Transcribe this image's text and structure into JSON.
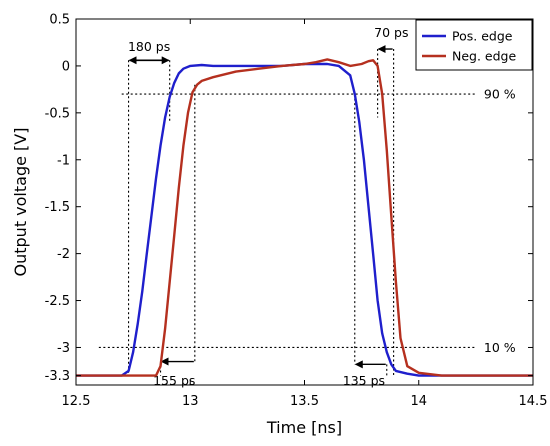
{
  "chart_data": {
    "type": "line",
    "xlabel": "Time [ns]",
    "ylabel": "Output voltage [V]",
    "xlim": [
      12.5,
      14.5
    ],
    "ylim": [
      -3.4,
      0.5
    ],
    "xticks": [
      12.5,
      13,
      13.5,
      14,
      14.5
    ],
    "xtick_labels": [
      "12.5",
      "13",
      "13.5",
      "14",
      "14.5"
    ],
    "yticks": [
      0.5,
      0,
      -0.5,
      -1,
      -1.5,
      -2,
      -2.5,
      -3,
      -3.3
    ],
    "ytick_labels": [
      "0.5",
      "0",
      "-0.5",
      "-1",
      "-1.5",
      "-2",
      "-2.5",
      "-3",
      "-3.3"
    ],
    "grid": false,
    "legend_position": "top-right",
    "series": [
      {
        "name": "Pos. edge",
        "color": "#1f1fcc",
        "x": [
          12.5,
          12.6,
          12.65,
          12.7,
          12.73,
          12.75,
          12.77,
          12.79,
          12.81,
          12.83,
          12.85,
          12.87,
          12.89,
          12.91,
          12.93,
          12.95,
          12.97,
          13.0,
          13.05,
          13.1,
          13.2,
          13.3,
          13.4,
          13.5,
          13.6,
          13.65,
          13.7,
          13.72,
          13.74,
          13.76,
          13.78,
          13.8,
          13.82,
          13.84,
          13.86,
          13.88,
          13.9,
          13.95,
          14.0,
          14.1,
          14.2,
          14.3,
          14.5
        ],
        "y": [
          -3.3,
          -3.3,
          -3.3,
          -3.3,
          -3.25,
          -3.05,
          -2.75,
          -2.4,
          -2.0,
          -1.6,
          -1.2,
          -0.85,
          -0.55,
          -0.33,
          -0.18,
          -0.08,
          -0.03,
          0.0,
          0.01,
          0.0,
          0.0,
          0.0,
          0.0,
          0.02,
          0.02,
          0.0,
          -0.1,
          -0.3,
          -0.6,
          -1.0,
          -1.5,
          -2.0,
          -2.5,
          -2.85,
          -3.05,
          -3.18,
          -3.25,
          -3.28,
          -3.3,
          -3.3,
          -3.3,
          -3.3,
          -3.3
        ]
      },
      {
        "name": "Neg. edge",
        "color": "#b5301f",
        "x": [
          12.5,
          12.6,
          12.7,
          12.8,
          12.85,
          12.87,
          12.89,
          12.91,
          12.93,
          12.95,
          12.97,
          12.99,
          13.01,
          13.03,
          13.05,
          13.1,
          13.2,
          13.3,
          13.4,
          13.5,
          13.55,
          13.6,
          13.65,
          13.7,
          13.75,
          13.78,
          13.8,
          13.82,
          13.84,
          13.86,
          13.88,
          13.9,
          13.92,
          13.95,
          14.0,
          14.1,
          14.2,
          14.3,
          14.5
        ],
        "y": [
          -3.3,
          -3.3,
          -3.3,
          -3.3,
          -3.3,
          -3.2,
          -2.8,
          -2.3,
          -1.8,
          -1.3,
          -0.85,
          -0.5,
          -0.28,
          -0.2,
          -0.16,
          -0.12,
          -0.06,
          -0.03,
          0.0,
          0.02,
          0.04,
          0.07,
          0.04,
          0.0,
          0.02,
          0.05,
          0.06,
          0.0,
          -0.3,
          -0.9,
          -1.6,
          -2.3,
          -2.9,
          -3.2,
          -3.27,
          -3.3,
          -3.3,
          -3.3,
          -3.3
        ]
      }
    ],
    "reference_lines": [
      {
        "label": "90 %",
        "y": -0.3,
        "x_start": 12.7,
        "x_end": 14.25
      },
      {
        "label": "10 %",
        "y": -3.0,
        "x_start": 12.6,
        "x_end": 14.25
      }
    ],
    "annotations": [
      {
        "text": "180 ps",
        "arrow": "double",
        "x1": 12.73,
        "x2": 12.91,
        "y": 0.06,
        "label_x": 12.82,
        "label_y": 0.2,
        "vlines": [
          {
            "x": 12.73,
            "y_from": 0.06,
            "y_to": -3.3
          },
          {
            "x": 12.91,
            "y_from": 0.06,
            "y_to": -0.6
          }
        ]
      },
      {
        "text": "70 ps",
        "arrow": "inward",
        "x1": 13.82,
        "x2": 13.89,
        "y": 0.18,
        "label_x": 13.88,
        "label_y": 0.35,
        "vlines": [
          {
            "x": 13.82,
            "y_from": 0.18,
            "y_to": -0.55
          },
          {
            "x": 13.89,
            "y_from": 0.18,
            "y_to": -3.3
          }
        ]
      },
      {
        "text": "155 ps",
        "arrow": "inward",
        "x1": 12.87,
        "x2": 13.02,
        "y": -3.15,
        "label_x": 12.93,
        "label_y": -3.36,
        "vlines": [
          {
            "x": 12.87,
            "y_from": -3.15,
            "y_to": -3.3
          },
          {
            "x": 13.02,
            "y_from": -0.2,
            "y_to": -3.15
          }
        ]
      },
      {
        "text": "135 ps",
        "arrow": "inward",
        "x1": 13.72,
        "x2": 13.86,
        "y": -3.18,
        "label_x": 13.76,
        "label_y": -3.36,
        "vlines": [
          {
            "x": 13.72,
            "y_from": -0.3,
            "y_to": -3.18
          },
          {
            "x": 13.86,
            "y_from": -3.18,
            "y_to": -3.3
          }
        ]
      }
    ]
  }
}
